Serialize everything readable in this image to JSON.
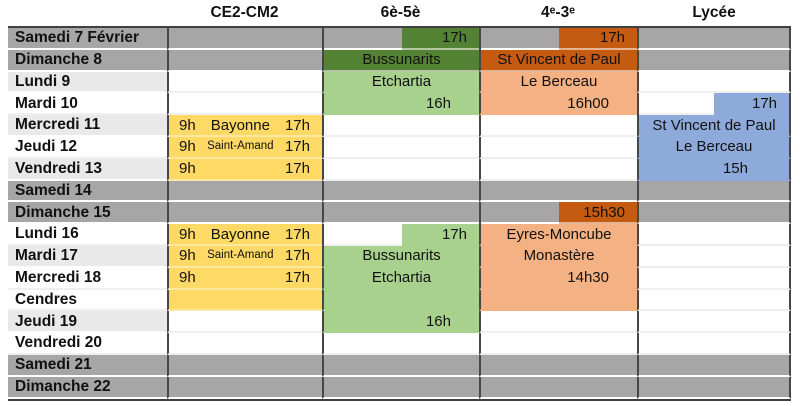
{
  "palette": {
    "darkgray": "#a6a6a6",
    "lightgray": "#e9e9e9",
    "white": "#ffffff",
    "yellow": "#ffd966",
    "darkgreen": "#548235",
    "lightgreen": "#a9d18e",
    "darkorange": "#c55a11",
    "lightorange": "#f4b183",
    "blue": "#8eaadb",
    "border": "#404040",
    "text": "#111111"
  },
  "table": {
    "corner_label": "",
    "columns": [
      "CE2-CM2",
      "6è-5è",
      "4ᵉ-3ᵉ",
      "Lycée"
    ],
    "column_keys": [
      "ce2-cm2",
      "6e-5e",
      "4e-3e",
      "lycee"
    ],
    "rows": [
      {
        "day": "Samedi 7 Février",
        "dayBg": "darkgray",
        "cells": [
          {
            "bg": "darkgray"
          },
          {
            "split": {
              "left": "darkgray",
              "right": "darkgreen",
              "text": "17h"
            }
          },
          {
            "split": {
              "left": "darkgray",
              "right": "darkorange",
              "text": "17h"
            }
          },
          {
            "bg": "darkgray"
          }
        ]
      },
      {
        "day": "Dimanche 8",
        "dayBg": "darkgray",
        "cells": [
          {
            "bg": "darkgray"
          },
          {
            "bg": "darkgreen",
            "text": "Bussunarits",
            "align": "center"
          },
          {
            "bg": "darkorange",
            "text": "St Vincent de Paul",
            "align": "center"
          },
          {
            "bg": "darkgray"
          }
        ]
      },
      {
        "day": "Lundi 9",
        "dayBg": "lightgray",
        "cells": [
          {
            "bg": "white"
          },
          {
            "bg": "lightgreen",
            "text": "Etchartia",
            "align": "center"
          },
          {
            "bg": "lightorange",
            "text": "Le Berceau",
            "align": "center"
          },
          {
            "bg": "white"
          }
        ]
      },
      {
        "day": "Mardi 10",
        "dayBg": "white",
        "cells": [
          {
            "bg": "white"
          },
          {
            "bg": "lightgreen",
            "text": "16h",
            "align": "right"
          },
          {
            "bg": "lightorange",
            "text": "16h00",
            "align": "right"
          },
          {
            "split": {
              "left": "white",
              "right": "blue",
              "text": "17h"
            }
          }
        ]
      },
      {
        "day": "Mercredi 11",
        "dayBg": "lightgray",
        "cells": [
          {
            "bg": "yellow",
            "parts": {
              "start": "9h",
              "mid": "Bayonne",
              "end": "17h",
              "midSmall": false
            }
          },
          {
            "bg": "white"
          },
          {
            "bg": "white"
          },
          {
            "bg": "blue",
            "text": "St Vincent de Paul",
            "align": "center"
          }
        ]
      },
      {
        "day": "Jeudi 12",
        "dayBg": "white",
        "cells": [
          {
            "bg": "yellow",
            "parts": {
              "start": "9h",
              "mid": "Saint-Amand",
              "end": "17h",
              "midSmall": true
            }
          },
          {
            "bg": "white"
          },
          {
            "bg": "white"
          },
          {
            "bg": "blue",
            "text": "Le Berceau",
            "align": "center"
          }
        ]
      },
      {
        "day": "Vendredi 13",
        "dayBg": "lightgray",
        "cells": [
          {
            "bg": "yellow",
            "parts": {
              "start": "9h",
              "mid": "",
              "end": "17h",
              "midSmall": false
            }
          },
          {
            "bg": "white"
          },
          {
            "bg": "white"
          },
          {
            "bg": "blue",
            "text": "15h",
            "align": "right-far"
          }
        ]
      },
      {
        "day": "Samedi 14",
        "dayBg": "darkgray",
        "cells": [
          {
            "bg": "darkgray"
          },
          {
            "bg": "darkgray"
          },
          {
            "bg": "darkgray"
          },
          {
            "bg": "darkgray"
          }
        ]
      },
      {
        "day": "Dimanche 15",
        "dayBg": "darkgray",
        "cells": [
          {
            "bg": "darkgray"
          },
          {
            "bg": "darkgray"
          },
          {
            "split": {
              "left": "darkgray",
              "right": "darkorange",
              "text": "15h30"
            }
          },
          {
            "bg": "darkgray"
          }
        ]
      },
      {
        "day": "Lundi 16",
        "dayBg": "white",
        "cells": [
          {
            "bg": "yellow",
            "parts": {
              "start": "9h",
              "mid": "Bayonne",
              "end": "17h",
              "midSmall": false
            }
          },
          {
            "split": {
              "left": "white",
              "right": "lightgreen",
              "text": "17h"
            }
          },
          {
            "bg": "lightorange",
            "text": "Eyres-Moncube",
            "align": "center"
          },
          {
            "bg": "white"
          }
        ]
      },
      {
        "day": "Mardi 17",
        "dayBg": "lightgray",
        "cells": [
          {
            "bg": "yellow",
            "parts": {
              "start": "9h",
              "mid": "Saint-Amand",
              "end": "17h",
              "midSmall": true
            }
          },
          {
            "bg": "lightgreen",
            "text": "Bussunarits",
            "align": "center"
          },
          {
            "bg": "lightorange",
            "text": "Monastère",
            "align": "center"
          },
          {
            "bg": "white"
          }
        ]
      },
      {
        "day": "Mercredi 18",
        "dayBg": "white",
        "cells": [
          {
            "bg": "yellow",
            "parts": {
              "start": "9h",
              "mid": "",
              "end": "17h",
              "midSmall": false
            }
          },
          {
            "bg": "lightgreen",
            "text": "Etchartia",
            "align": "center"
          },
          {
            "bg": "lightorange",
            "text": "14h30",
            "align": "right"
          },
          {
            "bg": "white"
          }
        ]
      },
      {
        "day": "Cendres",
        "dayBg": "white",
        "cells": [
          {
            "bg": "yellow"
          },
          {
            "bg": "lightgreen"
          },
          {
            "bg": "lightorange"
          },
          {
            "bg": "white"
          }
        ]
      },
      {
        "day": "Jeudi 19",
        "dayBg": "lightgray",
        "cells": [
          {
            "bg": "white"
          },
          {
            "bg": "lightgreen",
            "text": "16h",
            "align": "right"
          },
          {
            "bg": "white"
          },
          {
            "bg": "white"
          }
        ]
      },
      {
        "day": "Vendredi 20",
        "dayBg": "white",
        "cells": [
          {
            "bg": "white"
          },
          {
            "bg": "white"
          },
          {
            "bg": "white"
          },
          {
            "bg": "white"
          }
        ]
      },
      {
        "day": "Samedi 21",
        "dayBg": "darkgray",
        "cells": [
          {
            "bg": "darkgray"
          },
          {
            "bg": "darkgray"
          },
          {
            "bg": "darkgray"
          },
          {
            "bg": "darkgray"
          }
        ]
      },
      {
        "day": "Dimanche 22",
        "dayBg": "darkgray",
        "cells": [
          {
            "bg": "darkgray"
          },
          {
            "bg": "darkgray"
          },
          {
            "bg": "darkgray"
          },
          {
            "bg": "darkgray"
          }
        ]
      }
    ]
  }
}
